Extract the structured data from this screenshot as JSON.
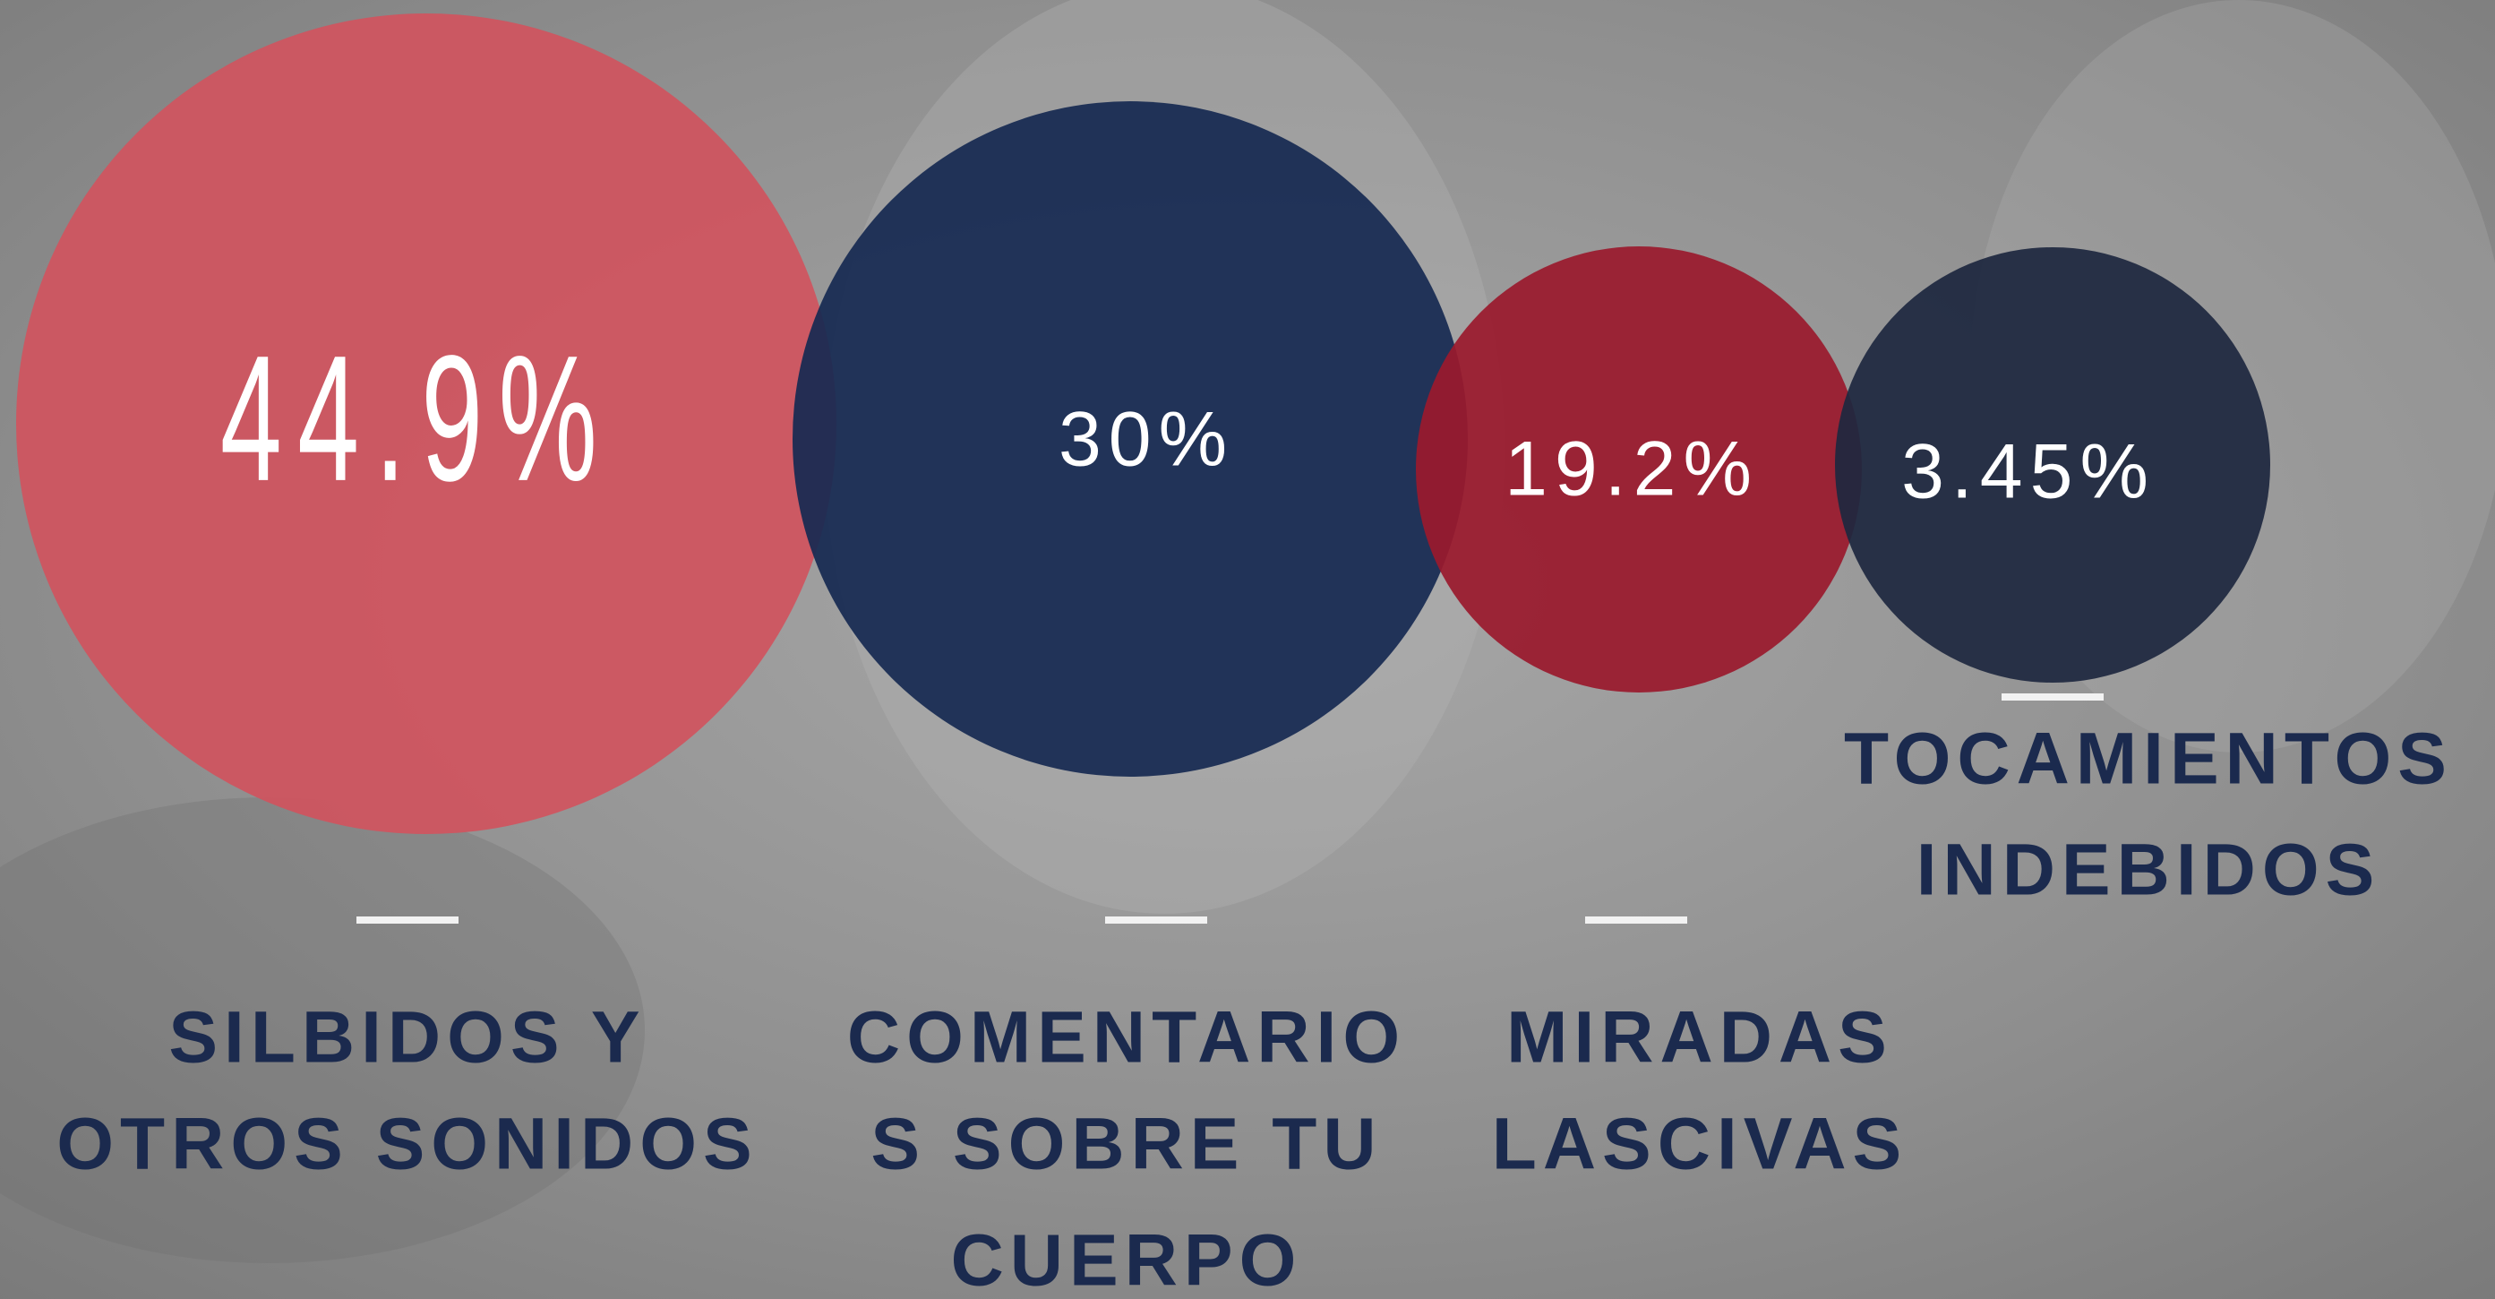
{
  "chart_data": {
    "type": "bubble",
    "categories": [
      [
        "SILBIDOS Y",
        "OTROS SONIDOS"
      ],
      [
        "COMENTARIO",
        "S SOBRE TU",
        "CUERPO"
      ],
      [
        "MIRADAS",
        "LASCIVAS"
      ],
      [
        "TOCAMIENTOS",
        "INDEBIDOS"
      ]
    ],
    "values": [
      44.9,
      30,
      19.2,
      3.45
    ],
    "value_labels": [
      "44.9%",
      "30%",
      "19.2%",
      "3.45%"
    ],
    "colors": [
      "#d0545f",
      "#172a52",
      "#9a1a2d",
      "#1e2840"
    ]
  }
}
